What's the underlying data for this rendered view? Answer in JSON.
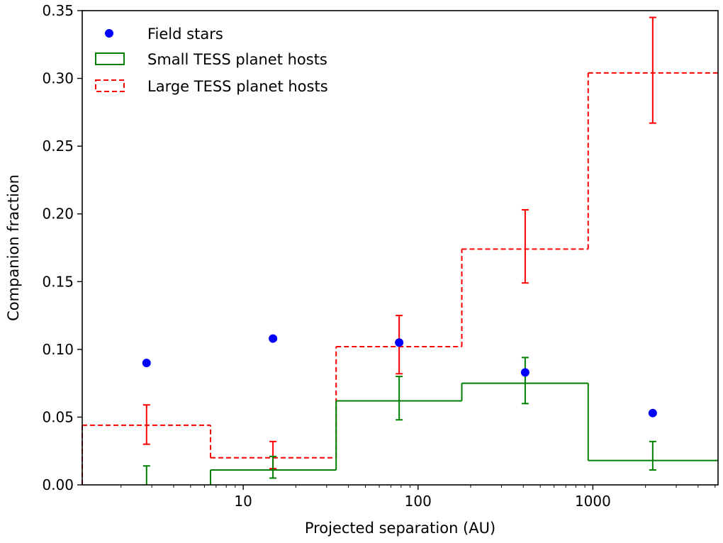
{
  "chart_data": {
    "type": "histogram-with-scatter",
    "xlabel": "Projected separation (AU)",
    "ylabel": "Companion fraction",
    "xscale": "log",
    "xlim": [
      1.2,
      5200
    ],
    "ylim": [
      0,
      0.35
    ],
    "x_ticks": [
      {
        "value": 10,
        "label": "10"
      },
      {
        "value": 100,
        "label": "100"
      },
      {
        "value": 1000,
        "label": "1000"
      }
    ],
    "y_ticks": [
      {
        "value": 0.0,
        "label": "0.00"
      },
      {
        "value": 0.05,
        "label": "0.05"
      },
      {
        "value": 0.1,
        "label": "0.10"
      },
      {
        "value": 0.15,
        "label": "0.15"
      },
      {
        "value": 0.2,
        "label": "0.20"
      },
      {
        "value": 0.25,
        "label": "0.25"
      },
      {
        "value": 0.3,
        "label": "0.30"
      },
      {
        "value": 0.35,
        "label": "0.35"
      }
    ],
    "bin_edges": [
      1.2,
      6.5,
      34,
      178,
      940,
      5200
    ],
    "bin_centers": [
      2.8,
      14.8,
      78,
      410,
      2200
    ],
    "legend_position": "top-left",
    "series": [
      {
        "name": "Field stars",
        "style": "scatter",
        "color": "#0000ff",
        "values": [
          0.09,
          0.108,
          0.105,
          0.083,
          0.053
        ]
      },
      {
        "name": "Small TESS planet hosts",
        "style": "step-solid",
        "color": "#008000",
        "values": [
          0.0,
          0.011,
          0.062,
          0.075,
          0.018
        ],
        "err_low": [
          0.0,
          0.005,
          0.048,
          0.06,
          0.011
        ],
        "err_high": [
          0.014,
          0.021,
          0.08,
          0.094,
          0.032
        ]
      },
      {
        "name": "Large TESS planet hosts",
        "style": "step-dashed",
        "color": "#ff0000",
        "values": [
          0.044,
          0.02,
          0.102,
          0.174,
          0.304
        ],
        "err_low": [
          0.03,
          0.012,
          0.082,
          0.149,
          0.267
        ],
        "err_high": [
          0.059,
          0.032,
          0.125,
          0.203,
          0.345
        ]
      }
    ]
  }
}
